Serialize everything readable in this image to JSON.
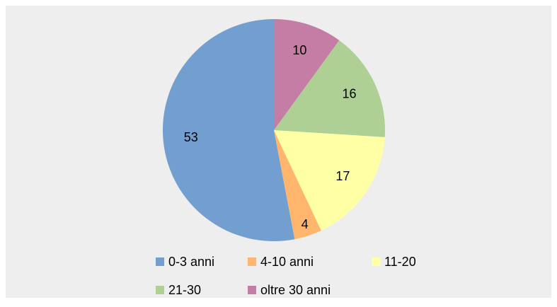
{
  "chart_data": {
    "type": "pie",
    "categories": [
      "0-3 anni",
      "4-10 anni",
      "11-20",
      "21-30",
      "oltre 30 anni"
    ],
    "values": [
      53,
      4,
      17,
      16,
      10
    ],
    "colors": [
      "#729fcf",
      "#ffb66c",
      "#ffffa6",
      "#afd095",
      "#c47ea5"
    ],
    "legend": "bottom"
  }
}
